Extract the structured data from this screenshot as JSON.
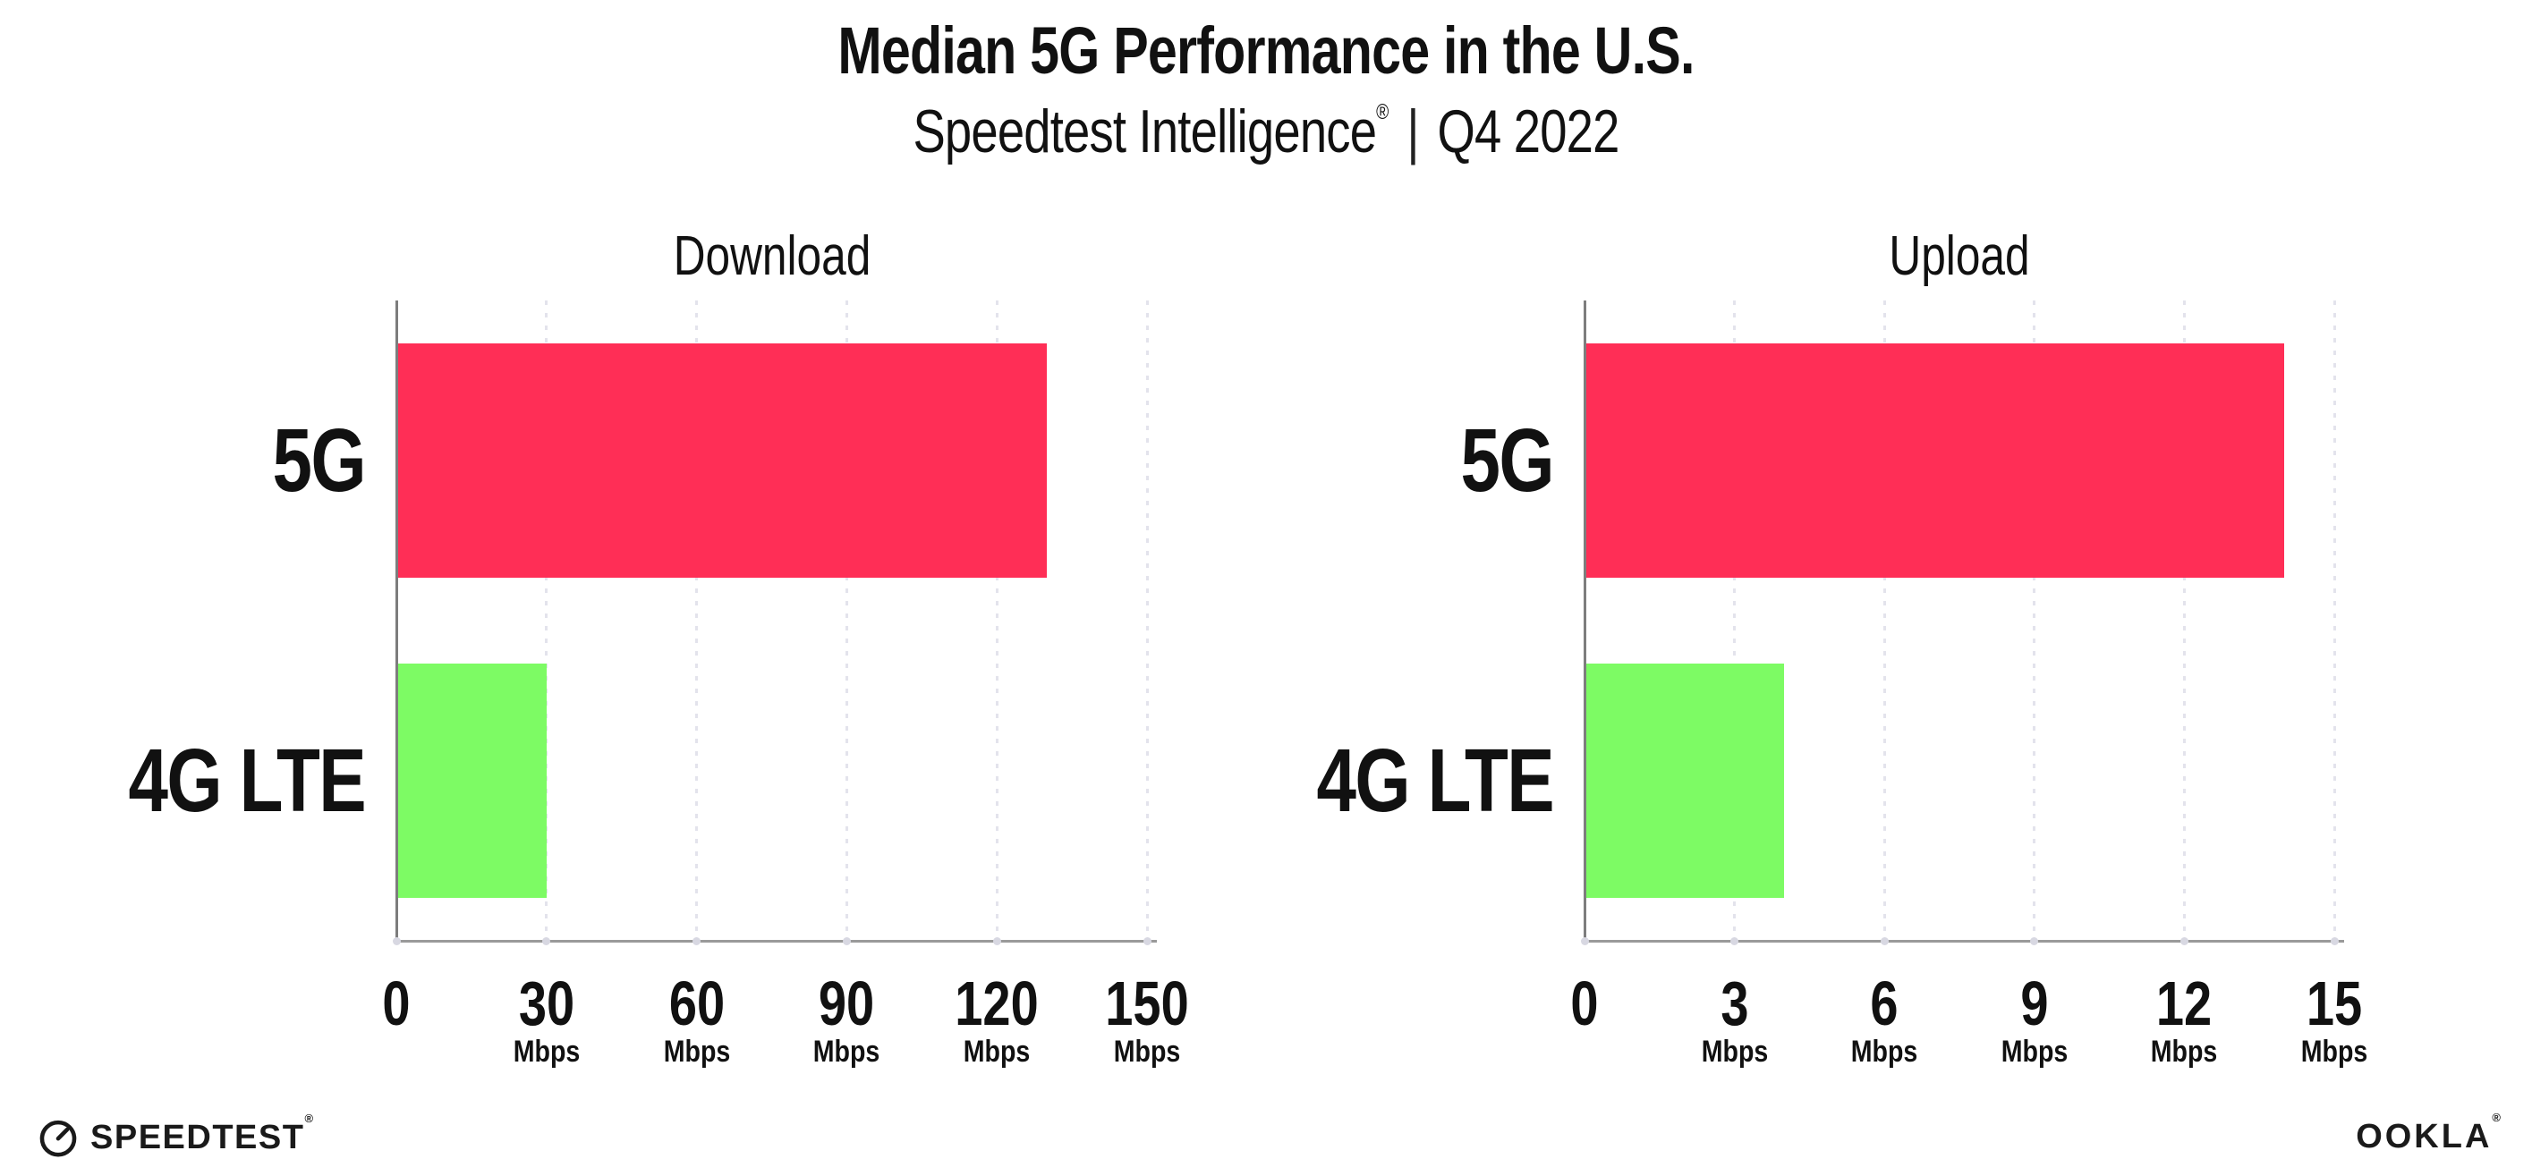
{
  "title": "Median 5G Performance in the U.S.",
  "subtitle": {
    "brand": "Speedtest Intelligence",
    "reg": "®",
    "separator": "|",
    "period": "Q4 2022"
  },
  "footer": {
    "speedtest_label": "SPEEDTEST",
    "speedtest_mark": "®",
    "speedtest_icon": "gauge-icon",
    "ookla_label": "OOKLA",
    "ookla_mark": "®"
  },
  "colors": {
    "bar_5g": "#FF2E56",
    "bar_4g_lte": "#7DFB64",
    "gridline": "#E3E3EC",
    "x_axis": "#9A9A9A",
    "y_axis": "#7D7D7D",
    "text": "#111111"
  },
  "chart_data": [
    {
      "type": "bar",
      "orientation": "horizontal",
      "title": "Download",
      "categories": [
        "5G",
        "4G LTE"
      ],
      "values": [
        130,
        30
      ],
      "unit": "Mbps",
      "xlim": [
        0,
        150
      ],
      "xticks": [
        0,
        30,
        60,
        90,
        120,
        150
      ],
      "grid": "vertical-dotted-major",
      "legend": "none",
      "bar_colors": [
        "#FF2E56",
        "#7DFB64"
      ]
    },
    {
      "type": "bar",
      "orientation": "horizontal",
      "title": "Upload",
      "categories": [
        "5G",
        "4G LTE"
      ],
      "values": [
        14,
        4
      ],
      "unit": "Mbps",
      "xlim": [
        0,
        15
      ],
      "xticks": [
        0,
        3,
        6,
        9,
        12,
        15
      ],
      "grid": "vertical-dotted-major",
      "legend": "none",
      "bar_colors": [
        "#FF2E56",
        "#7DFB64"
      ]
    }
  ]
}
